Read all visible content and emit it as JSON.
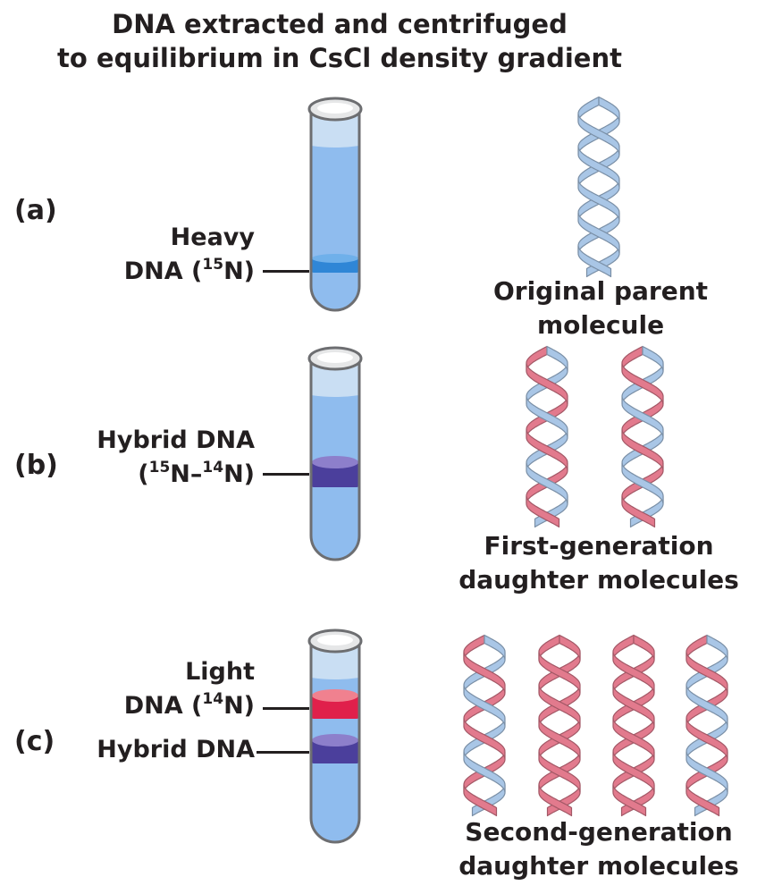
{
  "title": {
    "line1": "DNA extracted and centrifuged",
    "line2": "to equilibrium in CsCl density gradient"
  },
  "parts": [
    {
      "label": "(a)",
      "bands": [
        {
          "line1": "Heavy",
          "line2_pre": "DNA (",
          "line2_sup": "15",
          "line2_post": "N)",
          "color": "#2f86d6"
        }
      ],
      "caption": {
        "line1": "Original parent",
        "line2": "molecule"
      }
    },
    {
      "label": "(b)",
      "bands": [
        {
          "line1": "Hybrid DNA",
          "line2_pre": "(",
          "line2_sup": "15",
          "line2_mid": "N–",
          "line2_sup2": "14",
          "line2_post": "N)",
          "color": "#4b3f9c"
        }
      ],
      "caption": {
        "line1": "First-generation",
        "line2": "daughter molecules"
      }
    },
    {
      "label": "(c)",
      "bands": [
        {
          "line1": "Light",
          "line2_pre": "DNA (",
          "line2_sup": "14",
          "line2_post": "N)",
          "color": "#e0204b"
        },
        {
          "line1": "Hybrid DNA",
          "color": "#4b3f9c"
        }
      ],
      "caption": {
        "line1": "Second-generation",
        "line2": "daughter molecules"
      }
    }
  ],
  "colors": {
    "heavy_strand": "#a9c6e6",
    "light_strand": "#e27a8d",
    "tube_liquid": "#8fbcee"
  }
}
